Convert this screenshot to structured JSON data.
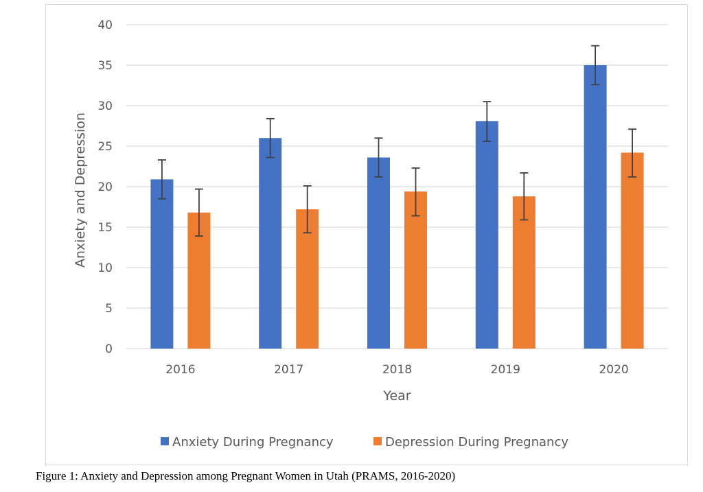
{
  "caption": "Figure 1: Anxiety and Depression among Pregnant Women in Utah (PRAMS, 2016-2020)",
  "chart_data": {
    "type": "bar",
    "categories": [
      "2016",
      "2017",
      "2018",
      "2019",
      "2020"
    ],
    "series": [
      {
        "name": "Anxiety During Pregnancy",
        "color": "#4472c4",
        "values": [
          20.9,
          26.0,
          23.6,
          28.1,
          35.0
        ],
        "error_low": [
          18.5,
          23.6,
          21.2,
          25.6,
          32.6
        ],
        "error_high": [
          23.3,
          28.4,
          26.0,
          30.5,
          37.4
        ]
      },
      {
        "name": "Depression During Pregnancy",
        "color": "#ed7d31",
        "values": [
          16.8,
          17.2,
          19.4,
          18.8,
          24.2
        ],
        "error_low": [
          13.9,
          14.3,
          16.4,
          15.9,
          21.2
        ],
        "error_high": [
          19.7,
          20.1,
          22.3,
          21.7,
          27.1
        ]
      }
    ],
    "xlabel": "Year",
    "ylabel": "Anxiety  and Depression",
    "ylim": [
      0,
      40
    ],
    "yticks": [
      0,
      5,
      10,
      15,
      20,
      25,
      30,
      35,
      40
    ],
    "grid": true,
    "legend_position": "bottom"
  }
}
